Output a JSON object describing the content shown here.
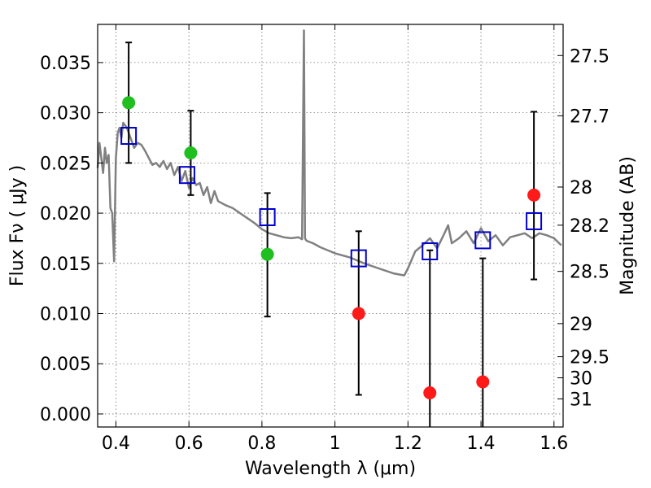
{
  "chart_data": {
    "type": "scatter",
    "title": "",
    "xlabel": "Wavelength  λ (μm)",
    "ylabel": "Flux  Fν  ( μJy )",
    "y2label": "Magnitude (AB)",
    "xlim": [
      0.35,
      1.625
    ],
    "ylim": [
      -0.0013,
      0.0388
    ],
    "grid": true,
    "x_ticks": [
      0.4,
      0.6,
      0.8,
      1.0,
      1.2,
      1.4,
      1.6
    ],
    "x_tick_labels": [
      "0.4",
      "0.6",
      "0.8",
      "1",
      "1.2",
      "1.4",
      "1.6"
    ],
    "y_ticks": [
      0.0,
      0.005,
      0.01,
      0.015,
      0.02,
      0.025,
      0.03,
      0.035
    ],
    "y_tick_labels": [
      "0.000",
      "0.005",
      "0.010",
      "0.015",
      "0.020",
      "0.025",
      "0.030",
      "0.035"
    ],
    "y2_ticks": [
      {
        "label": "27.5",
        "flux": 0.0357
      },
      {
        "label": "27.7",
        "flux": 0.0297
      },
      {
        "label": "28",
        "flux": 0.0226
      },
      {
        "label": "28.2",
        "flux": 0.0188
      },
      {
        "label": "28.5",
        "flux": 0.0142
      },
      {
        "label": "29",
        "flux": 0.009
      },
      {
        "label": "29.5",
        "flux": 0.0057
      },
      {
        "label": "30",
        "flux": 0.0036
      },
      {
        "label": "31",
        "flux": 0.0015
      }
    ],
    "series": [
      {
        "kind": "line",
        "color": "#808080",
        "x": [
          0.35,
          0.355,
          0.36,
          0.365,
          0.37,
          0.375,
          0.38,
          0.385,
          0.39,
          0.395,
          0.4,
          0.405,
          0.41,
          0.415,
          0.42,
          0.43,
          0.44,
          0.45,
          0.46,
          0.47,
          0.48,
          0.49,
          0.5,
          0.51,
          0.52,
          0.53,
          0.54,
          0.55,
          0.56,
          0.57,
          0.58,
          0.59,
          0.6,
          0.61,
          0.62,
          0.63,
          0.64,
          0.65,
          0.66,
          0.67,
          0.68,
          0.7,
          0.72,
          0.74,
          0.76,
          0.78,
          0.8,
          0.82,
          0.84,
          0.86,
          0.88,
          0.9,
          0.91,
          0.915,
          0.918,
          0.921,
          0.925,
          0.94,
          0.96,
          1.0,
          1.04,
          1.08,
          1.12,
          1.16,
          1.19,
          1.2,
          1.22,
          1.24,
          1.26,
          1.28,
          1.3,
          1.31,
          1.32,
          1.34,
          1.36,
          1.38,
          1.4,
          1.42,
          1.44,
          1.46,
          1.48,
          1.5,
          1.52,
          1.54,
          1.56,
          1.58,
          1.6,
          1.62
        ],
        "y": [
          0.0245,
          0.027,
          0.0255,
          0.024,
          0.0265,
          0.025,
          0.0258,
          0.0205,
          0.02,
          0.0152,
          0.0255,
          0.028,
          0.0285,
          0.0275,
          0.029,
          0.0285,
          0.0275,
          0.0265,
          0.027,
          0.0268,
          0.0262,
          0.0255,
          0.0248,
          0.025,
          0.0246,
          0.0252,
          0.0244,
          0.025,
          0.0238,
          0.0246,
          0.0232,
          0.0242,
          0.0225,
          0.0235,
          0.0228,
          0.023,
          0.0218,
          0.0226,
          0.021,
          0.0222,
          0.0212,
          0.0208,
          0.0205,
          0.02,
          0.0195,
          0.019,
          0.0184,
          0.018,
          0.0178,
          0.0176,
          0.0175,
          0.0176,
          0.0174,
          0.0382,
          0.0175,
          0.0173,
          0.0172,
          0.017,
          0.0166,
          0.016,
          0.0156,
          0.015,
          0.0145,
          0.014,
          0.0138,
          0.0145,
          0.0162,
          0.0168,
          0.0175,
          0.0165,
          0.018,
          0.0188,
          0.017,
          0.0175,
          0.0182,
          0.017,
          0.0185,
          0.0172,
          0.0178,
          0.0168,
          0.0176,
          0.0178,
          0.018,
          0.0175,
          0.018,
          0.0178,
          0.0175,
          0.0168
        ]
      },
      {
        "kind": "errorbar",
        "color": "#000000",
        "x": [
          0.435,
          0.605,
          0.815,
          1.065,
          1.26,
          1.405,
          1.545
        ],
        "y": [
          0.031,
          0.026,
          0.0159,
          0.01,
          0.0021,
          0.0032,
          0.0218
        ],
        "yerr_low": [
          0.025,
          0.0218,
          0.0097,
          0.0019,
          -0.002,
          -0.002,
          0.0134
        ],
        "yerr_high": [
          0.037,
          0.0302,
          0.022,
          0.0182,
          0.0163,
          0.0155,
          0.0301
        ]
      },
      {
        "kind": "points",
        "color": "#1fbf1f",
        "marker": "circle",
        "x": [
          0.435,
          0.605,
          0.815
        ],
        "y": [
          0.031,
          0.026,
          0.0159
        ]
      },
      {
        "kind": "points",
        "color": "#ff1a1a",
        "marker": "circle",
        "x": [
          1.065,
          1.26,
          1.405,
          1.545
        ],
        "y": [
          0.01,
          0.0021,
          0.0032,
          0.0218
        ]
      },
      {
        "kind": "points",
        "color": "#0000cc",
        "marker": "open-square",
        "x": [
          0.435,
          0.595,
          0.815,
          1.065,
          1.26,
          1.405,
          1.545
        ],
        "y": [
          0.0277,
          0.0238,
          0.0196,
          0.0155,
          0.0162,
          0.0173,
          0.0192
        ]
      }
    ]
  }
}
